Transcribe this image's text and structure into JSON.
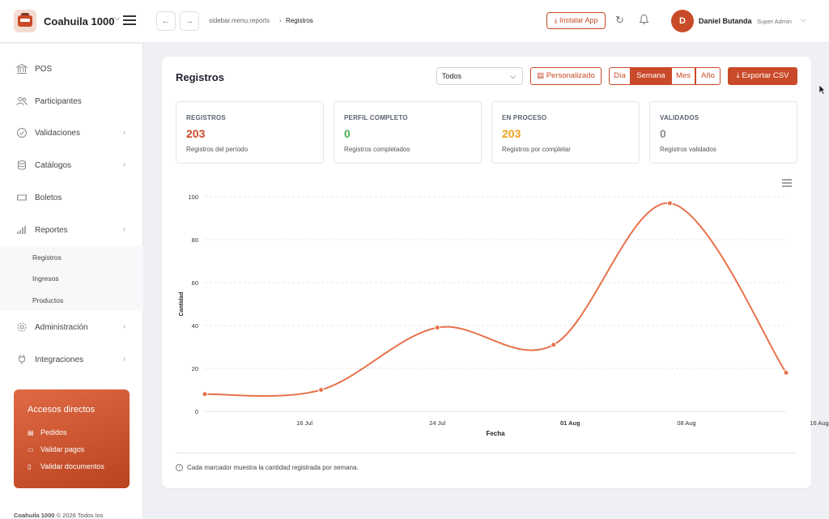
{
  "header": {
    "app_title": "Coahuila 1000",
    "breadcrumb": [
      "sidebar.menu.reports",
      "Registros"
    ],
    "install_label": "Instalar App",
    "user": {
      "initial": "D",
      "name": "Daniel Butanda",
      "role": "Super Admin"
    }
  },
  "sidebar": {
    "items": [
      {
        "label": "POS",
        "icon": "bank-icon"
      },
      {
        "label": "Participantes",
        "icon": "users-icon"
      },
      {
        "label": "Validaciones",
        "icon": "check-circle-icon"
      },
      {
        "label": "Catálogos",
        "icon": "database-icon"
      },
      {
        "label": "Boletos",
        "icon": "ticket-icon"
      },
      {
        "label": "Reportes",
        "icon": "bar-chart-icon"
      },
      {
        "label": "Administración",
        "icon": "gear-icon"
      },
      {
        "label": "Integraciones",
        "icon": "plug-icon"
      }
    ],
    "reportes_sub": [
      "Registros",
      "Ingresos",
      "Productos"
    ],
    "shortcuts": {
      "title": "Accesos directos",
      "items": [
        "Pedidos",
        "Validar pagos",
        "Validar documentos"
      ]
    },
    "footer": "Coahuila 1000 © 2026 Todos los"
  },
  "main": {
    "title": "Registros",
    "filter_value": "Todos",
    "custom_label": "Personalizado",
    "periods": [
      "Día",
      "Semana",
      "Mes",
      "Año"
    ],
    "active_period": "Semana",
    "export_label": "Exportar CSV",
    "stats": [
      {
        "label": "REGISTROS",
        "value": "203",
        "sub": "Registros del período",
        "color": "#c94a28"
      },
      {
        "label": "PERFIL COMPLETO",
        "value": "0",
        "sub": "Registros completados",
        "color": "#4caf50"
      },
      {
        "label": "EN PROCESO",
        "value": "203",
        "sub": "Registros por completar",
        "color": "#f0a020"
      },
      {
        "label": "VALIDADOS",
        "value": "0",
        "sub": "Registros validados",
        "color": "#8a8f98"
      }
    ],
    "note": "Cada marcador muestra la cantidad registrada por semana."
  },
  "chart_data": {
    "type": "line",
    "xlabel": "Fecha",
    "ylabel": "Cantidad",
    "x_ticks": [
      "16 Jul",
      "24 Jul",
      "01 Aug",
      "08 Aug",
      "16 Aug"
    ],
    "x": [
      "10 Jul",
      "17 Jul",
      "24 Jul",
      "31 Jul",
      "07 Aug",
      "14 Aug"
    ],
    "values": [
      8,
      10,
      39,
      31,
      97,
      18
    ],
    "ylim": [
      0,
      100
    ],
    "y_ticks": [
      0,
      20,
      40,
      60,
      80,
      100
    ],
    "grid": true,
    "color": "#e8714a"
  }
}
